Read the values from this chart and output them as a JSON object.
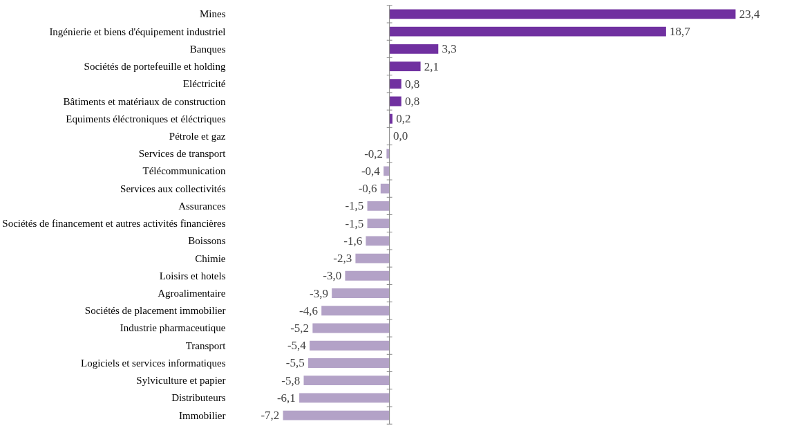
{
  "chart_data": {
    "type": "bar",
    "orientation": "horizontal",
    "categories": [
      "Mines",
      "Ingénierie et biens d'équipement industriel",
      "Banques",
      "Sociétés de portefeuille et holding",
      "Eléctricité",
      "Bâtiments et matériaux de construction",
      "Equiments éléctroniques et éléctriques",
      "Pétrole et gaz",
      "Services de transport",
      "Télécommunication",
      "Services aux collectivités",
      "Assurances",
      "Sociétés de financement et autres activités financières",
      "Boissons",
      "Chimie",
      "Loisirs et hotels",
      "Agroalimentaire",
      "Sociétés de placement immobilier",
      "Industrie pharmaceutique",
      "Transport",
      "Logiciels et services informatiques",
      "Sylviculture et papier",
      "Distributeurs",
      "Immobilier"
    ],
    "values": [
      23.4,
      18.7,
      3.3,
      2.1,
      0.8,
      0.8,
      0.2,
      0.0,
      -0.2,
      -0.4,
      -0.6,
      -1.5,
      -1.5,
      -1.6,
      -2.3,
      -3.0,
      -3.9,
      -4.6,
      -5.2,
      -5.4,
      -5.5,
      -5.8,
      -6.1,
      -7.2
    ],
    "value_labels": [
      "23,4",
      "18,7",
      "3,3",
      "2,1",
      "0,8",
      "0,8",
      "0,2",
      "0,0",
      "-0,2",
      "-0,4",
      "-0,6",
      "-1,5",
      "-1,5",
      "-1,6",
      "-2,3",
      "-3,0",
      "-3,9",
      "-4,6",
      "-5,2",
      "-5,4",
      "-5,5",
      "-5,8",
      "-6,1",
      "-7,2"
    ],
    "colors": [
      "#7030a0",
      "#7030a0",
      "#7030a0",
      "#7030a0",
      "#7030a0",
      "#7030a0",
      "#7030a0",
      "#7030a0",
      "#b3a2c7",
      "#b3a2c7",
      "#b3a2c7",
      "#b3a2c7",
      "#b3a2c7",
      "#b3a2c7",
      "#b3a2c7",
      "#b3a2c7",
      "#b3a2c7",
      "#b3a2c7",
      "#b3a2c7",
      "#b3a2c7",
      "#b3a2c7",
      "#b3a2c7",
      "#b3a2c7",
      "#b3a2c7"
    ]
  }
}
